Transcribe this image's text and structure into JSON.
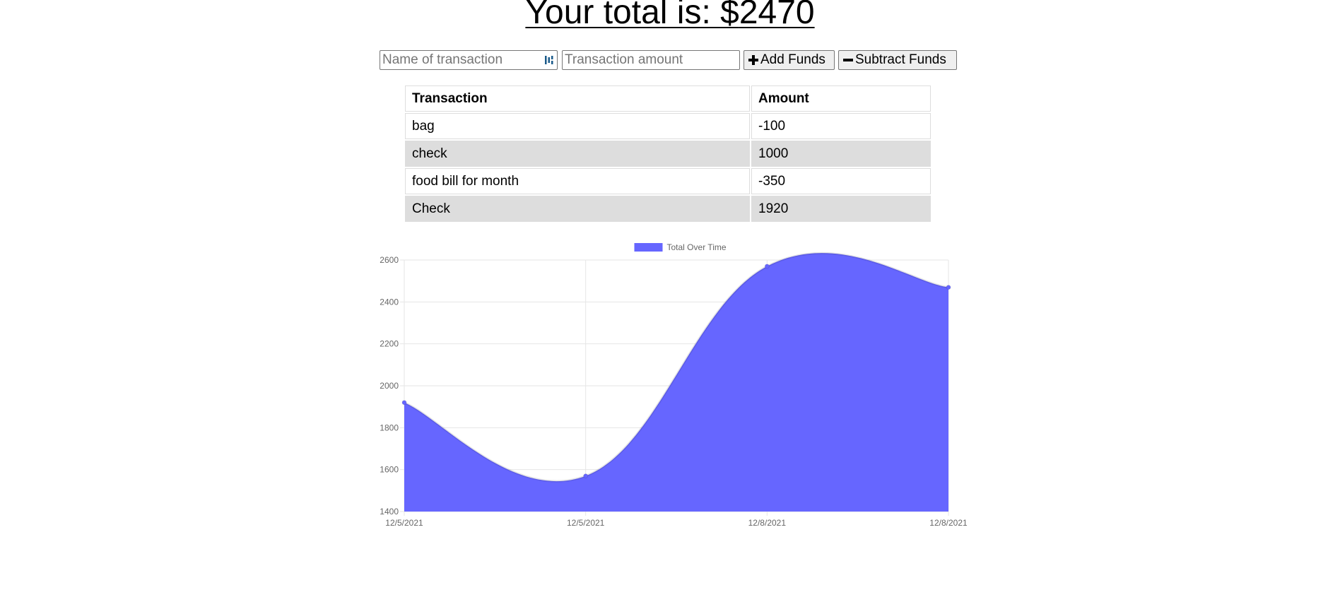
{
  "header": {
    "total_prefix": "Your total is: $",
    "total_value": "2470"
  },
  "form": {
    "name_placeholder": "Name of transaction",
    "amount_placeholder": "Transaction amount",
    "add_label": "Add Funds",
    "add_icon": "plus-icon",
    "subtract_label": "Subtract Funds",
    "subtract_icon": "minus-icon"
  },
  "table": {
    "headers": [
      "Transaction",
      "Amount"
    ],
    "rows": [
      {
        "name": "bag",
        "amount": "-100"
      },
      {
        "name": "check",
        "amount": "1000"
      },
      {
        "name": "food bill for month",
        "amount": "-350"
      },
      {
        "name": "Check",
        "amount": "1920"
      }
    ],
    "striped_row_color": "#dddddd"
  },
  "chart_data": {
    "type": "area",
    "legend": [
      "Total Over Time"
    ],
    "legend_position": "top",
    "series": [
      {
        "name": "Total Over Time",
        "values": [
          1920,
          1570,
          2570,
          2470
        ],
        "color": "#6666ff"
      }
    ],
    "categories": [
      "12/5/2021",
      "12/5/2021",
      "12/8/2021",
      "12/8/2021"
    ],
    "ylim": [
      1400,
      2600
    ],
    "yticks": [
      "2600",
      "2400",
      "2200",
      "2000",
      "1800",
      "1600",
      "1400"
    ],
    "grid": true,
    "curve": "smooth"
  }
}
